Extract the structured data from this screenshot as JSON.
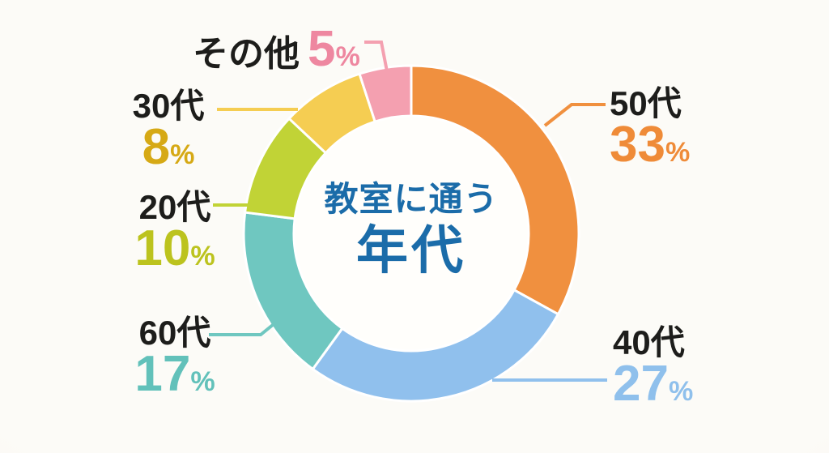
{
  "page": {
    "background": "#faf8f3",
    "hole_color": "#fffefb"
  },
  "chart_data": {
    "type": "donut",
    "title": "教室に通う年代",
    "center_label": {
      "line1": "教室に通う",
      "line2": "年代",
      "color": "#1b6ca9"
    },
    "categories": [
      "50代",
      "40代",
      "60代",
      "20代",
      "30代",
      "その他"
    ],
    "values": [
      33,
      27,
      17,
      10,
      8,
      5
    ],
    "unit": "%",
    "colors": [
      "#f0903f",
      "#90c0ed",
      "#6fc7c0",
      "#c1d336",
      "#f5cd52",
      "#f4a0b0"
    ],
    "start_angle_deg": 0,
    "direction": "clockwise",
    "inner_radius_ratio": 0.7,
    "legend_position": "callouts"
  },
  "labels": [
    {
      "name": "50代",
      "value": "33",
      "unit": "%",
      "name_color": "#1d1d1b",
      "value_color": "#ef8b38"
    },
    {
      "name": "40代",
      "value": "27",
      "unit": "%",
      "name_color": "#1d1d1b",
      "value_color": "#8fc0ec"
    },
    {
      "name": "60代",
      "value": "17",
      "unit": "%",
      "name_color": "#1d1d1b",
      "value_color": "#62c1ba"
    },
    {
      "name": "20代",
      "value": "10",
      "unit": "%",
      "name_color": "#1d1d1b",
      "value_color": "#bcc31e"
    },
    {
      "name": "30代",
      "value": "8",
      "unit": "%",
      "name_color": "#1d1d1b",
      "value_color": "#d6a915"
    },
    {
      "name": "その他",
      "value": "5",
      "unit": "%",
      "name_color": "#1d1d1b",
      "value_color": "#ee87a0"
    }
  ]
}
